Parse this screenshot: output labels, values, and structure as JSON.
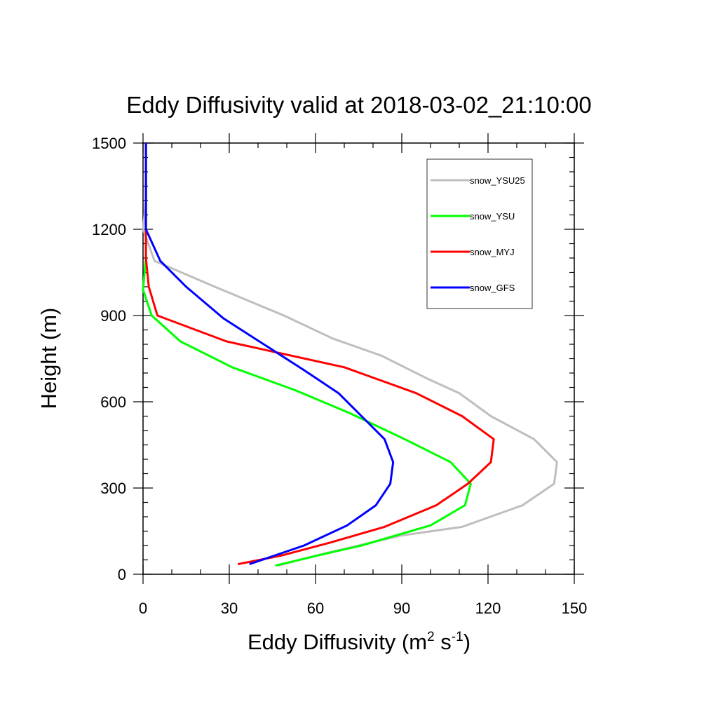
{
  "chart_data": {
    "type": "line",
    "title": "Eddy Diffusivity valid at 2018-03-02_21:10:00",
    "xlabel": {
      "main": "Eddy Diffusivity (m",
      "sup1": "2",
      "mid": " s",
      "sup2": "-1",
      "close": ")"
    },
    "ylabel": "Height (m)",
    "xlim": [
      0,
      150
    ],
    "ylim": [
      0,
      1500
    ],
    "xticks": [
      0,
      30,
      60,
      90,
      120,
      150
    ],
    "yticks": [
      0,
      300,
      600,
      900,
      1200,
      1500
    ],
    "xtick_labels": [
      "0",
      "30",
      "60",
      "90",
      "120",
      "150"
    ],
    "ytick_labels": [
      "0",
      "300",
      "600",
      "900",
      "1200",
      "1500"
    ],
    "x_minor_step": 10,
    "y_minor_step": 50,
    "grid": false,
    "legend_position": "top-right",
    "series": [
      {
        "name": "snow_YSU25",
        "color": "#bebebe",
        "points": [
          [
            47,
            30
          ],
          [
            60,
            65
          ],
          [
            75,
            100
          ],
          [
            90,
            135
          ],
          [
            111,
            165
          ],
          [
            132,
            240
          ],
          [
            143,
            315
          ],
          [
            144,
            390
          ],
          [
            136,
            470
          ],
          [
            121,
            550
          ],
          [
            110,
            630
          ],
          [
            99,
            680
          ],
          [
            83,
            760
          ],
          [
            66,
            820
          ],
          [
            49,
            900
          ],
          [
            25,
            1000
          ],
          [
            4,
            1090
          ],
          [
            0,
            1200
          ],
          [
            1,
            1300
          ],
          [
            1,
            1500
          ]
        ]
      },
      {
        "name": "snow_YSU",
        "color": "#00ff00",
        "points": [
          [
            46,
            30
          ],
          [
            62,
            68
          ],
          [
            76,
            100
          ],
          [
            88,
            135
          ],
          [
            100,
            170
          ],
          [
            112,
            240
          ],
          [
            114,
            315
          ],
          [
            107,
            390
          ],
          [
            91,
            470
          ],
          [
            72,
            560
          ],
          [
            53,
            640
          ],
          [
            31,
            720
          ],
          [
            13,
            810
          ],
          [
            3,
            900
          ],
          [
            0,
            990
          ],
          [
            1,
            1100
          ],
          [
            1,
            1200
          ],
          [
            1,
            1300
          ],
          [
            1,
            1500
          ]
        ]
      },
      {
        "name": "snow_MYJ",
        "color": "#ff0000",
        "points": [
          [
            33,
            35
          ],
          [
            48,
            65
          ],
          [
            65,
            110
          ],
          [
            84,
            165
          ],
          [
            102,
            240
          ],
          [
            113,
            315
          ],
          [
            121,
            390
          ],
          [
            122,
            470
          ],
          [
            111,
            550
          ],
          [
            95,
            630
          ],
          [
            70,
            720
          ],
          [
            29,
            810
          ],
          [
            5,
            900
          ],
          [
            2,
            1000
          ],
          [
            1,
            1100
          ],
          [
            1,
            1200
          ],
          [
            1,
            1300
          ],
          [
            1,
            1500
          ]
        ]
      },
      {
        "name": "snow_GFS",
        "color": "#0000ff",
        "points": [
          [
            37,
            35
          ],
          [
            56,
            100
          ],
          [
            71,
            170
          ],
          [
            81,
            240
          ],
          [
            86,
            315
          ],
          [
            87,
            390
          ],
          [
            84,
            470
          ],
          [
            76,
            550
          ],
          [
            68,
            630
          ],
          [
            56,
            710
          ],
          [
            28,
            890
          ],
          [
            15,
            1000
          ],
          [
            6,
            1090
          ],
          [
            1,
            1200
          ],
          [
            1,
            1300
          ],
          [
            1,
            1500
          ]
        ]
      }
    ]
  }
}
